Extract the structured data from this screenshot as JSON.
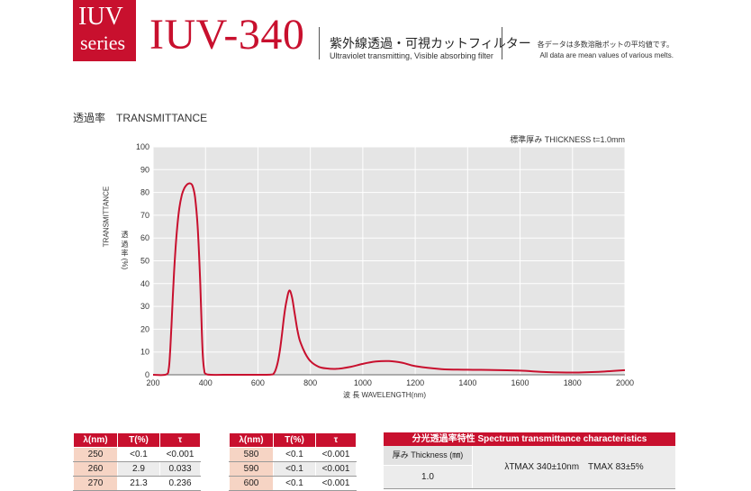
{
  "header": {
    "badge_line1": "IUV",
    "badge_line2": "series",
    "model": "IUV-340",
    "title_jp": "紫外線透過・可視カットフィルター",
    "title_en": "Ultraviolet transmitting, Visible absorbing filter",
    "note_jp": "各データは多数溶融ポットの平均値です。",
    "note_en": "All data are mean values of various melts."
  },
  "section_title": "透過率　TRANSMITTANCE",
  "thickness_label": "標準厚み THICKNESS t=1.0mm",
  "colors": {
    "brand": "#c8102e",
    "curve": "#c8102e",
    "plot_bg": "#e5e5e5",
    "grid": "#ffffff"
  },
  "chart_data": {
    "type": "line",
    "xlabel": "波 長 WAVELENGTH(nm)",
    "ylabel": "TRANSMITTANCE",
    "ylabel_jp": "透 過 率 (%)",
    "xlim": [
      200,
      2000
    ],
    "ylim": [
      0,
      100
    ],
    "x_ticks": [
      200,
      400,
      600,
      800,
      1000,
      1200,
      1400,
      1600,
      1800,
      2000
    ],
    "y_ticks": [
      0,
      10,
      20,
      30,
      40,
      50,
      60,
      70,
      80,
      90,
      100
    ],
    "grid": true,
    "series": [
      {
        "x": [
          200,
          250,
          260,
          265,
          270,
          280,
          290,
          300,
          310,
          320,
          330,
          340,
          350,
          360,
          370,
          380,
          385,
          390,
          395,
          400,
          420,
          500,
          600,
          650,
          660,
          670,
          680,
          690,
          700,
          710,
          720,
          730,
          740,
          750,
          760,
          780,
          800,
          830,
          860,
          900,
          950,
          1000,
          1050,
          1100,
          1150,
          1200,
          1300,
          1400,
          1500,
          1600,
          1700,
          1800,
          1900,
          2000
        ],
        "y": [
          0,
          0.1,
          2.9,
          10,
          21.3,
          45,
          62,
          73,
          79,
          82,
          83.5,
          84,
          83,
          78,
          65,
          40,
          22,
          8,
          2,
          0.5,
          0,
          0,
          0,
          0.1,
          0.5,
          3,
          8,
          16,
          26,
          33,
          37,
          34,
          27,
          20,
          15,
          9.5,
          6,
          3.6,
          2.8,
          2.6,
          3.4,
          4.8,
          5.8,
          6,
          5.3,
          3.8,
          2.5,
          2.2,
          2.1,
          1.8,
          1.2,
          1,
          1.3,
          2
        ]
      }
    ]
  },
  "table1": {
    "headers": [
      "λ(nm)",
      "T(%)",
      "τ"
    ],
    "rows": [
      [
        "250",
        "<0.1",
        "<0.001"
      ],
      [
        "260",
        "2.9",
        "0.033"
      ],
      [
        "270",
        "21.3",
        "0.236"
      ]
    ]
  },
  "table2": {
    "headers": [
      "λ(nm)",
      "T(%)",
      "τ"
    ],
    "rows": [
      [
        "580",
        "<0.1",
        "<0.001"
      ],
      [
        "590",
        "<0.1",
        "<0.001"
      ],
      [
        "600",
        "<0.1",
        "<0.001"
      ]
    ]
  },
  "spec": {
    "title": "分光透過率特性 Spectrum transmittance characteristics",
    "thickness_header": "厚み Thickness (㎜)",
    "thickness_value": "1.0",
    "value": "λTMAX 340±10nm　TMAX 83±5%"
  }
}
